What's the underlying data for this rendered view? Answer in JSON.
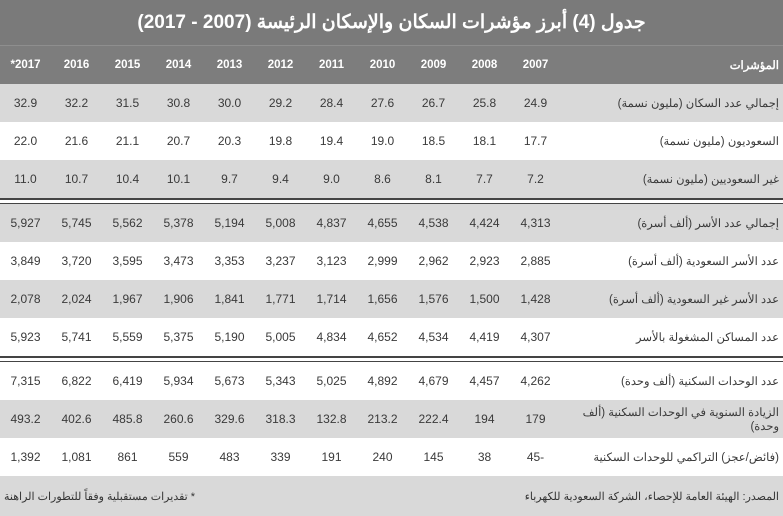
{
  "title": "جدول (4) أبرز مؤشرات السكان والإسكان الرئيسة (2007 - 2017)",
  "header": {
    "label": "المؤشرات",
    "years": [
      "2007",
      "2008",
      "2009",
      "2010",
      "2011",
      "2012",
      "2013",
      "2014",
      "2015",
      "2016",
      "*2017"
    ]
  },
  "groups": [
    [
      {
        "label": "إجمالي عدد السكان (مليون نسمة)",
        "values": [
          "24.9",
          "25.8",
          "26.7",
          "27.6",
          "28.4",
          "29.2",
          "30.0",
          "30.8",
          "31.5",
          "32.2",
          "32.9"
        ]
      },
      {
        "label": "السعوديون (مليون نسمة)",
        "values": [
          "17.7",
          "18.1",
          "18.5",
          "19.0",
          "19.4",
          "19.8",
          "20.3",
          "20.7",
          "21.1",
          "21.6",
          "22.0"
        ]
      },
      {
        "label": "غير السعوديين (مليون نسمة)",
        "values": [
          "7.2",
          "7.7",
          "8.1",
          "8.6",
          "9.0",
          "9.4",
          "9.7",
          "10.1",
          "10.4",
          "10.7",
          "11.0"
        ]
      }
    ],
    [
      {
        "label": "إجمالي عدد الأسر (ألف أسرة)",
        "values": [
          "4,313",
          "4,424",
          "4,538",
          "4,655",
          "4,837",
          "5,008",
          "5,194",
          "5,378",
          "5,562",
          "5,745",
          "5,927"
        ]
      },
      {
        "label": "عدد الأسر السعودية (ألف أسرة)",
        "values": [
          "2,885",
          "2,923",
          "2,962",
          "2,999",
          "3,123",
          "3,237",
          "3,353",
          "3,473",
          "3,595",
          "3,720",
          "3,849"
        ]
      },
      {
        "label": "عدد الأسر غير السعودية (ألف أسرة)",
        "values": [
          "1,428",
          "1,500",
          "1,576",
          "1,656",
          "1,714",
          "1,771",
          "1,841",
          "1,906",
          "1,967",
          "2,024",
          "2,078"
        ]
      },
      {
        "label": "عدد المساكن المشغولة بالأسر",
        "values": [
          "4,307",
          "4,419",
          "4,534",
          "4,652",
          "4,834",
          "5,005",
          "5,190",
          "5,375",
          "5,559",
          "5,741",
          "5,923"
        ]
      }
    ],
    [
      {
        "label": "عدد الوحدات السكنية (ألف وحدة)",
        "values": [
          "4,262",
          "4,457",
          "4,679",
          "4,892",
          "5,025",
          "5,343",
          "5,673",
          "5,934",
          "6,419",
          "6,822",
          "7,315"
        ]
      },
      {
        "label": "الزيادة السنوية في الوحدات السكنية (ألف وحدة)",
        "values": [
          "179",
          "194",
          "222.4",
          "213.2",
          "132.8",
          "318.3",
          "329.6",
          "260.6",
          "485.8",
          "402.6",
          "493.2"
        ]
      },
      {
        "label": "(فائض/عجز) التراكمي للوحدات السكنية",
        "values": [
          "45-",
          "38",
          "145",
          "240",
          "191",
          "339",
          "483",
          "559",
          "861",
          "1,081",
          "1,392"
        ]
      }
    ]
  ],
  "footer": {
    "source": "المصدر: الهيئة العامة للإحصاء، الشركة السعودية للكهرباء",
    "note": "* تقديرات مستقبلية وفقاً للتطورات الراهنة"
  }
}
